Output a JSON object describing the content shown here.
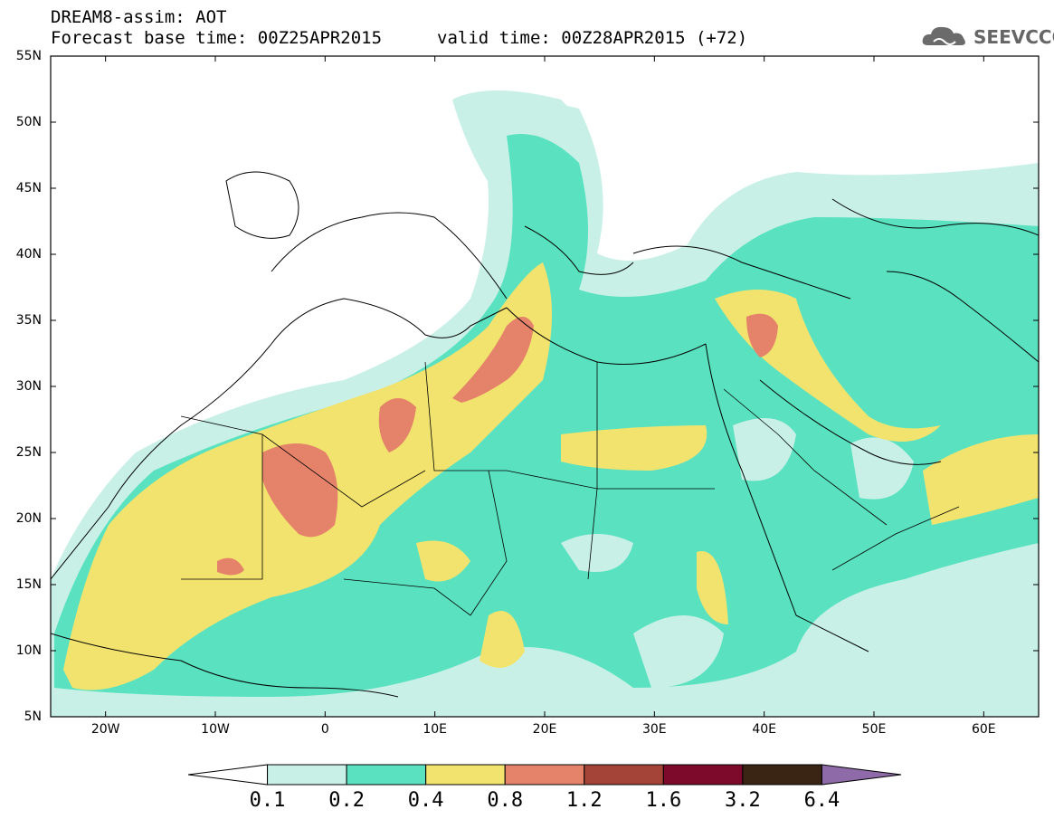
{
  "header": {
    "title": "DREAM8-assim: AOT",
    "base_time": "Forecast base time: 00Z25APR2015",
    "valid_time": "valid time: 00Z28APR2015 (+72)"
  },
  "logo": {
    "text": "SEEVCCC",
    "icon": "cloud-icon"
  },
  "map": {
    "lat_labels": [
      "55N",
      "50N",
      "45N",
      "40N",
      "35N",
      "30N",
      "25N",
      "20N",
      "15N",
      "10N",
      "5N"
    ],
    "lon_labels": [
      "20W",
      "10W",
      "0",
      "10E",
      "20E",
      "30E",
      "40E",
      "50E",
      "60E"
    ],
    "lat_range": [
      5,
      55
    ],
    "lon_range": [
      -25,
      65
    ]
  },
  "colorbar": {
    "labels": [
      "0.1",
      "0.2",
      "0.4",
      "0.8",
      "1.2",
      "1.6",
      "3.2",
      "6.4"
    ],
    "colors": [
      "#ffffff",
      "#c8f0e6",
      "#5ae2c0",
      "#f2e36e",
      "#e4836a",
      "#a44438",
      "#7d0a2a",
      "#3a2414",
      "#8f6aa8"
    ]
  }
}
